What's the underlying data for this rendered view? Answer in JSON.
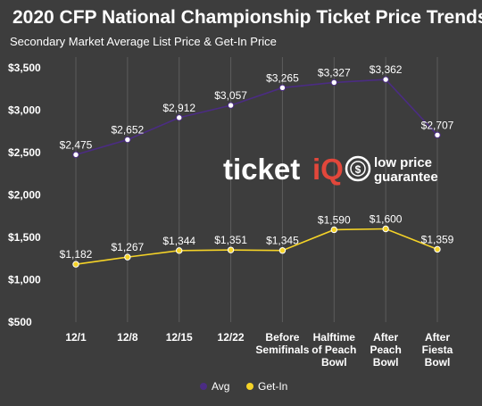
{
  "title": "2020 CFP National Championship Ticket Price Trends",
  "subtitle": "Secondary Market Average List Price & Get-In Price",
  "logo": {
    "wordmark": "ticket",
    "wordmark_accent": "iQ",
    "tagline_line1": "low price",
    "tagline_line2": "guarantee",
    "icon": "dollar-badge-icon"
  },
  "chart_data": {
    "type": "line",
    "categories": [
      [
        "12/1"
      ],
      [
        "12/8"
      ],
      [
        "12/15"
      ],
      [
        "12/22"
      ],
      [
        "Before",
        "Semifinals"
      ],
      [
        "Halftime",
        "of Peach",
        "Bowl"
      ],
      [
        "After",
        "Peach",
        "Bowl"
      ],
      [
        "After",
        "Fiesta",
        "Bowl"
      ]
    ],
    "series": [
      {
        "name": "Avg",
        "color": "#4b2c83",
        "values": [
          2475,
          2652,
          2912,
          3057,
          3265,
          3327,
          3362,
          2707
        ],
        "labels": [
          "$2,475",
          "$2,652",
          "$2,912",
          "$3,057",
          "$3,265",
          "$3,327",
          "$3,362",
          "$2,707"
        ]
      },
      {
        "name": "Get-In",
        "color": "#f5d327",
        "values": [
          1182,
          1267,
          1344,
          1351,
          1345,
          1590,
          1600,
          1359
        ],
        "labels": [
          "$1,182",
          "$1,267",
          "$1,344",
          "$1,351",
          "$1,345",
          "$1,590",
          "$1,600",
          "$1,359"
        ]
      }
    ],
    "ylim": [
      500,
      3500
    ],
    "yticks": [
      500,
      1000,
      1500,
      2000,
      2500,
      3000,
      3500
    ],
    "ytick_labels": [
      "$500",
      "$1,000",
      "$1,500",
      "$2,000",
      "$2,500",
      "$3,000",
      "$3,500"
    ],
    "grid": "vertical",
    "legend_position": "bottom-center"
  }
}
